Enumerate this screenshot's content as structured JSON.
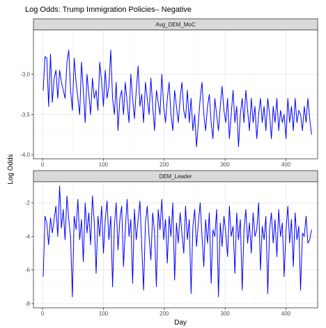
{
  "chart_data": {
    "type": "line",
    "title": "Log Odds: Trump Immigration Policies– Negative",
    "xlabel": "Day",
    "ylabel": "Log Odds",
    "line_color": "#0000ff",
    "grid": true,
    "facets": [
      {
        "name": "Avg_DEM_MoC",
        "xlim": [
          -15,
          452
        ],
        "ylim": [
          -4.05,
          -2.45
        ],
        "x_ticks": [
          0,
          100,
          200,
          300,
          400
        ],
        "y_ticks": [
          -3.0,
          -3.5,
          -4.0
        ],
        "x_tick_labels": [
          "0",
          "100",
          "200",
          "300",
          "400"
        ],
        "y_tick_labels": [
          "-3.0",
          "-3.5",
          "-4.0"
        ],
        "x": [
          1,
          4,
          7,
          10,
          13,
          16,
          19,
          22,
          25,
          28,
          31,
          34,
          37,
          40,
          43,
          46,
          49,
          52,
          55,
          58,
          61,
          64,
          67,
          70,
          73,
          76,
          79,
          82,
          85,
          88,
          91,
          94,
          97,
          100,
          103,
          106,
          109,
          112,
          115,
          118,
          121,
          124,
          127,
          130,
          133,
          136,
          139,
          142,
          145,
          148,
          151,
          154,
          157,
          160,
          163,
          166,
          169,
          172,
          175,
          178,
          181,
          184,
          187,
          190,
          193,
          196,
          199,
          202,
          205,
          208,
          211,
          214,
          217,
          220,
          223,
          226,
          229,
          232,
          235,
          238,
          241,
          244,
          247,
          250,
          253,
          256,
          259,
          262,
          265,
          268,
          271,
          274,
          277,
          280,
          283,
          286,
          289,
          292,
          295,
          298,
          301,
          304,
          307,
          310,
          313,
          316,
          319,
          322,
          325,
          328,
          331,
          334,
          337,
          340,
          343,
          346,
          349,
          352,
          355,
          358,
          361,
          364,
          367,
          370,
          373,
          376,
          379,
          382,
          385,
          388,
          391,
          394,
          397,
          400,
          403,
          406,
          409,
          412,
          415,
          418,
          421,
          424,
          427,
          430,
          433,
          436,
          439,
          442
        ],
        "y": [
          -3.2,
          -2.78,
          -2.8,
          -3.4,
          -2.75,
          -3.35,
          -3.05,
          -2.95,
          -3.3,
          -2.95,
          -3.1,
          -3.2,
          -3.3,
          -2.85,
          -2.7,
          -3.2,
          -3.45,
          -2.8,
          -3.1,
          -3.3,
          -3.5,
          -2.85,
          -3.2,
          -3.6,
          -3.0,
          -3.25,
          -3.5,
          -3.05,
          -3.3,
          -3.2,
          -3.45,
          -2.85,
          -3.1,
          -3.4,
          -2.95,
          -3.3,
          -3.15,
          -2.7,
          -3.3,
          -3.5,
          -3.1,
          -3.7,
          -3.3,
          -3.2,
          -3.5,
          -3.1,
          -3.35,
          -3.6,
          -3.0,
          -3.3,
          -3.55,
          -3.2,
          -2.9,
          -3.4,
          -3.25,
          -3.6,
          -3.1,
          -3.3,
          -3.5,
          -3.05,
          -3.4,
          -3.7,
          -3.2,
          -3.35,
          -3.5,
          -3.0,
          -3.4,
          -3.6,
          -3.3,
          -3.1,
          -3.5,
          -3.7,
          -3.2,
          -3.4,
          -3.6,
          -3.3,
          -3.1,
          -3.45,
          -3.55,
          -3.2,
          -3.6,
          -3.3,
          -3.7,
          -3.5,
          -3.9,
          -3.6,
          -3.3,
          -3.1,
          -3.5,
          -3.7,
          -3.4,
          -3.25,
          -3.6,
          -3.8,
          -3.3,
          -3.5,
          -3.7,
          -3.4,
          -3.15,
          -3.45,
          -3.6,
          -3.3,
          -3.8,
          -3.5,
          -3.2,
          -3.6,
          -3.4,
          -3.9,
          -3.5,
          -3.3,
          -3.6,
          -3.2,
          -3.45,
          -3.7,
          -3.3,
          -3.6,
          -3.4,
          -3.8,
          -3.5,
          -3.3,
          -3.6,
          -3.4,
          -3.7,
          -3.3,
          -3.5,
          -3.8,
          -3.4,
          -3.6,
          -3.3,
          -3.7,
          -3.45,
          -3.6,
          -3.5,
          -3.8,
          -3.3,
          -3.6,
          -3.4,
          -3.7,
          -3.3,
          -3.6,
          -3.45,
          -3.5,
          -3.7,
          -3.4,
          -3.6,
          -3.3,
          -3.55,
          -3.75
        ]
      },
      {
        "name": "DEM_Leader",
        "xlim": [
          -15,
          452
        ],
        "ylim": [
          -8.25,
          -0.75
        ],
        "x_ticks": [
          0,
          100,
          200,
          300,
          400
        ],
        "y_ticks": [
          -2,
          -4,
          -6,
          -8
        ],
        "x_tick_labels": [
          "0",
          "100",
          "200",
          "300",
          "400"
        ],
        "y_tick_labels": [
          "-2",
          "-4",
          "-6",
          "-8"
        ],
        "x": [
          1,
          4,
          7,
          10,
          13,
          16,
          19,
          22,
          25,
          28,
          31,
          34,
          37,
          40,
          43,
          46,
          49,
          52,
          55,
          58,
          61,
          64,
          67,
          70,
          73,
          76,
          79,
          82,
          85,
          88,
          91,
          94,
          97,
          100,
          103,
          106,
          109,
          112,
          115,
          118,
          121,
          124,
          127,
          130,
          133,
          136,
          139,
          142,
          145,
          148,
          151,
          154,
          157,
          160,
          163,
          166,
          169,
          172,
          175,
          178,
          181,
          184,
          187,
          190,
          193,
          196,
          199,
          202,
          205,
          208,
          211,
          214,
          217,
          220,
          223,
          226,
          229,
          232,
          235,
          238,
          241,
          244,
          247,
          250,
          253,
          256,
          259,
          262,
          265,
          268,
          271,
          274,
          277,
          280,
          283,
          286,
          289,
          292,
          295,
          298,
          301,
          304,
          307,
          310,
          313,
          316,
          319,
          322,
          325,
          328,
          331,
          334,
          337,
          340,
          343,
          346,
          349,
          352,
          355,
          358,
          361,
          364,
          367,
          370,
          373,
          376,
          379,
          382,
          385,
          388,
          391,
          394,
          397,
          400,
          403,
          406,
          409,
          412,
          415,
          418,
          421,
          424,
          427,
          430,
          433,
          436,
          439,
          442
        ],
        "y": [
          -6.4,
          -2.8,
          -3.2,
          -4.5,
          -2.9,
          -3.8,
          -3.0,
          -2.2,
          -4.0,
          -1.0,
          -3.5,
          -2.4,
          -4.2,
          -1.6,
          -3.0,
          -4.0,
          -7.6,
          -2.8,
          -3.6,
          -1.8,
          -4.2,
          -3.0,
          -5.5,
          -2.0,
          -3.8,
          -2.6,
          -4.5,
          -1.6,
          -3.2,
          -6.2,
          -2.8,
          -4.0,
          -2.2,
          -5.0,
          -3.0,
          -1.9,
          -4.2,
          -2.8,
          -7.0,
          -3.4,
          -2.0,
          -4.8,
          -3.0,
          -2.2,
          -5.8,
          -3.6,
          -1.8,
          -4.0,
          -3.0,
          -6.8,
          -2.4,
          -4.2,
          -3.0,
          -1.9,
          -4.6,
          -7.2,
          -3.2,
          -2.2,
          -4.0,
          -5.4,
          -2.6,
          -3.8,
          -7.0,
          -2.4,
          -3.6,
          -1.8,
          -4.2,
          -3.0,
          -5.6,
          -2.8,
          -4.0,
          -2.0,
          -6.6,
          -3.2,
          -4.4,
          -2.6,
          -3.8,
          -5.0,
          -2.2,
          -4.2,
          -3.0,
          -7.4,
          -3.4,
          -2.4,
          -4.6,
          -3.2,
          -2.0,
          -4.0,
          -5.8,
          -3.0,
          -4.4,
          -2.6,
          -6.8,
          -3.6,
          -4.0,
          -2.4,
          -7.6,
          -3.2,
          -4.6,
          -2.8,
          -3.8,
          -5.2,
          -2.2,
          -4.0,
          -3.4,
          -6.2,
          -2.6,
          -4.2,
          -3.0,
          -7.2,
          -3.6,
          -2.4,
          -4.4,
          -3.2,
          -5.0,
          -2.6,
          -4.0,
          -3.6,
          -2.0,
          -6.0,
          -3.4,
          -4.2,
          -2.8,
          -7.4,
          -3.6,
          -2.6,
          -4.4,
          -3.0,
          -5.2,
          -2.4,
          -4.0,
          -3.2,
          -6.4,
          -3.6,
          -2.2,
          -4.4,
          -3.0,
          -5.8,
          -2.6,
          -4.2,
          -3.4,
          -7.2,
          -3.8,
          -4.0,
          -2.8,
          -4.4,
          -4.2,
          -3.6
        ]
      }
    ]
  }
}
